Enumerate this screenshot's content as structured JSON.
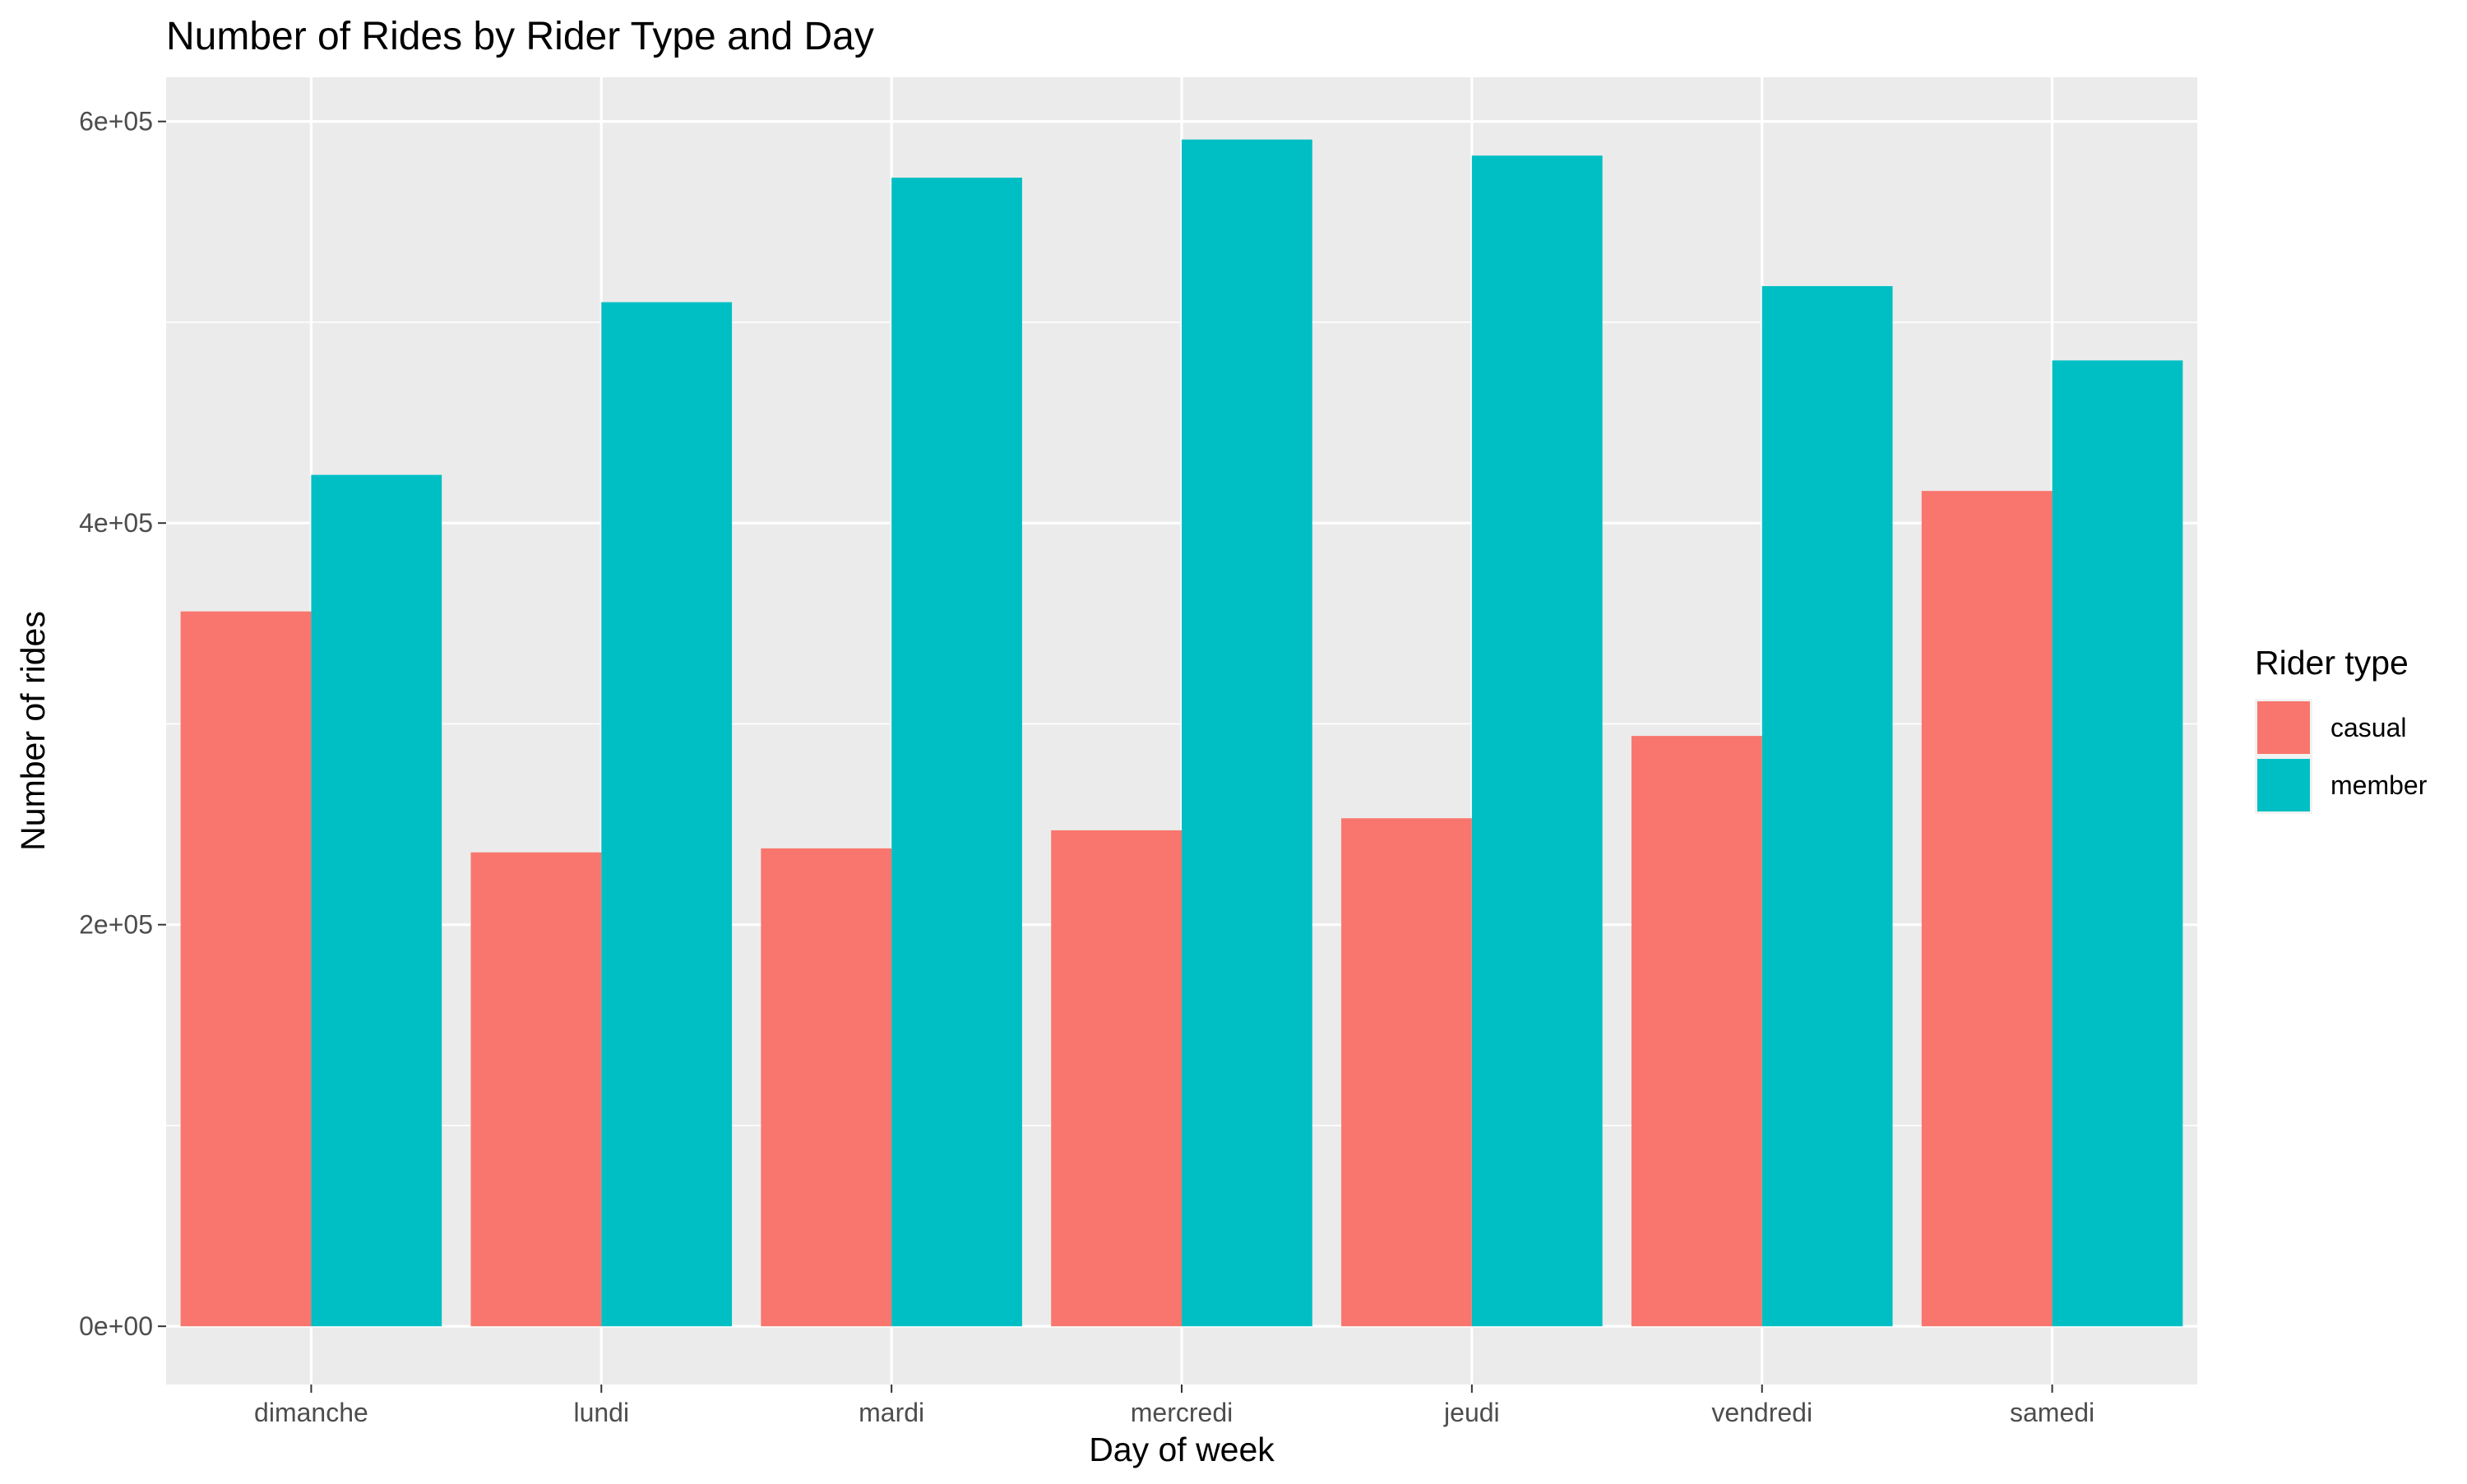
{
  "chart_data": {
    "type": "bar",
    "title": "Number of Rides by Rider Type and Day",
    "xlabel": "Day of week",
    "ylabel": "Number of rides",
    "categories": [
      "dimanche",
      "lundi",
      "mardi",
      "mercredi",
      "jeudi",
      "vendredi",
      "samedi"
    ],
    "series": [
      {
        "name": "casual",
        "color": "#F8766D",
        "values": [
          356000,
          236000,
          238000,
          247000,
          253000,
          294000,
          416000
        ]
      },
      {
        "name": "member",
        "color": "#00BFC4",
        "values": [
          424000,
          510000,
          572000,
          591000,
          583000,
          518000,
          481000
        ]
      }
    ],
    "ylim": [
      -29000,
      622000
    ],
    "yticks": [
      0,
      200000,
      400000,
      600000
    ],
    "ytick_labels": [
      "0e+00",
      "2e+05",
      "4e+05",
      "6e+05"
    ],
    "grid": true,
    "legend": {
      "title": "Rider type",
      "position": "right"
    },
    "panel_background": "#EBEBEB",
    "grid_color": "#FFFFFF"
  }
}
